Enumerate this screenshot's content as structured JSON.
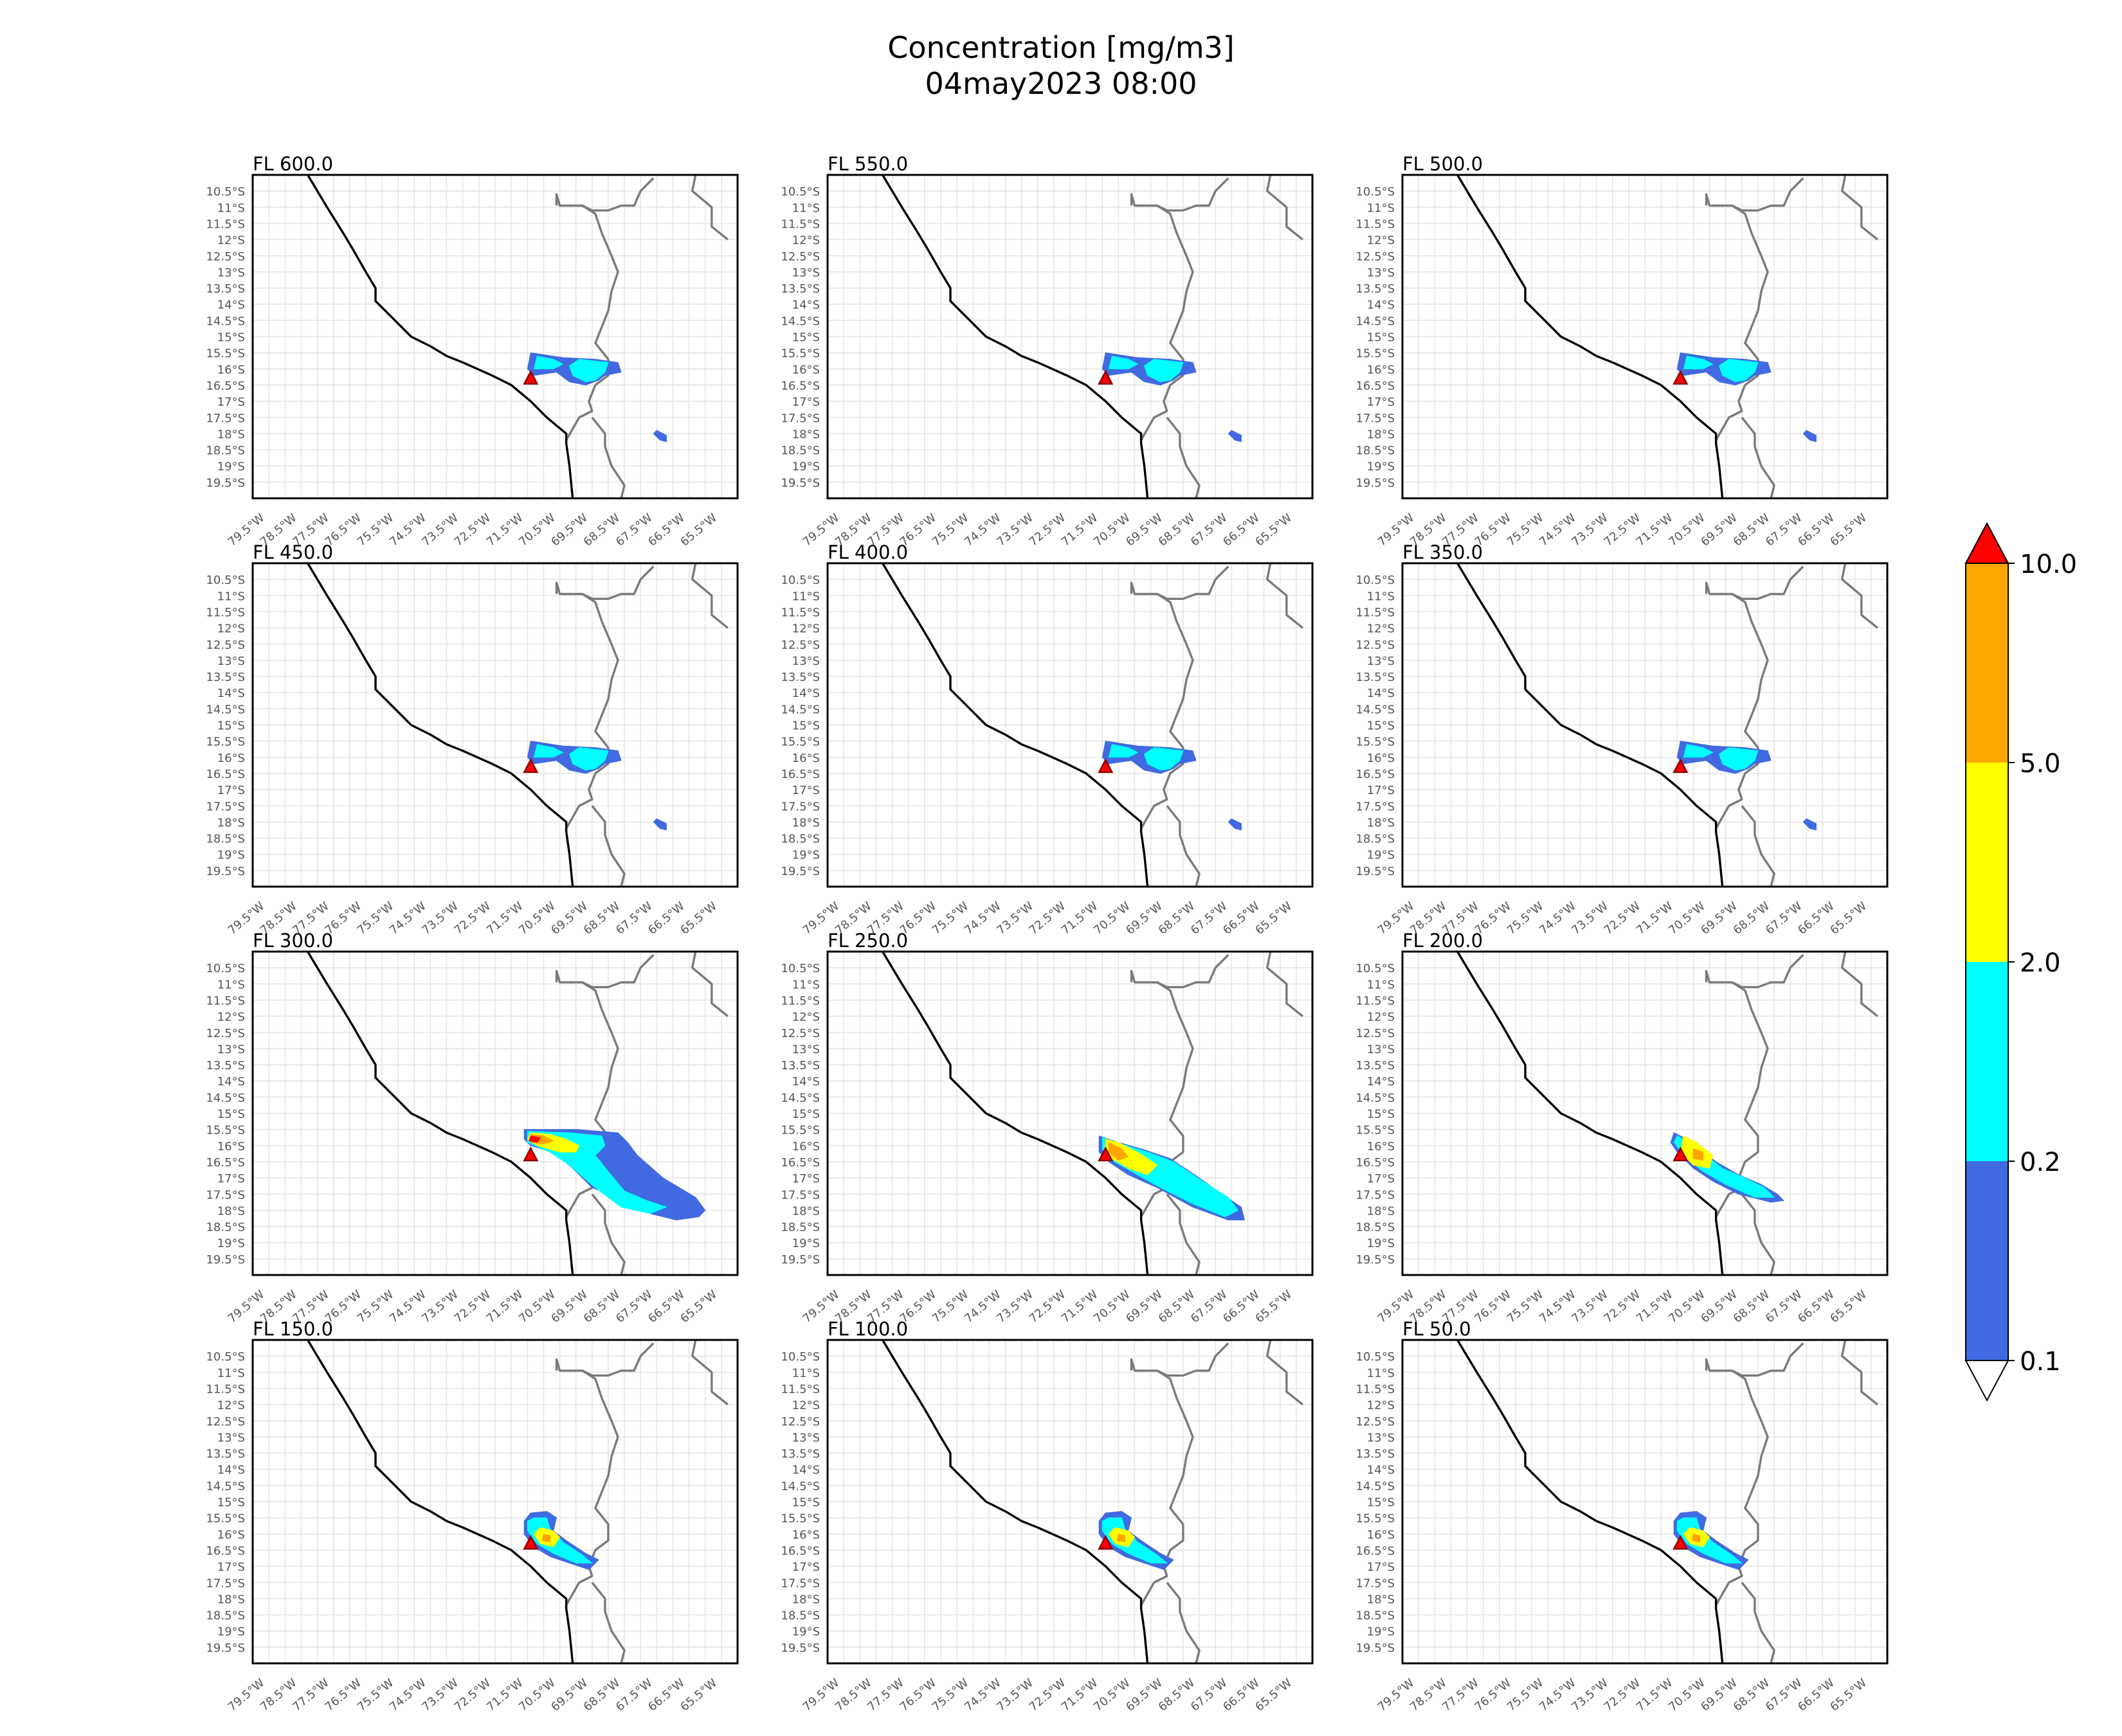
{
  "title_line1": "Concentration [mg/m3]",
  "title_line2": "04may2023 08:00",
  "lat_ticks": [
    "10.5°S",
    "11°S",
    "11.5°S",
    "12°S",
    "12.5°S",
    "13°S",
    "13.5°S",
    "14°S",
    "14.5°S",
    "15°S",
    "15.5°S",
    "16°S",
    "16.5°S",
    "17°S",
    "17.5°S",
    "18°S",
    "18.5°S",
    "19°S",
    "19.5°S"
  ],
  "lon_ticks": [
    "79.5°W",
    "78.5°W",
    "77.5°W",
    "76.5°W",
    "75.5°W",
    "74.5°W",
    "73.5°W",
    "72.5°W",
    "71.5°W",
    "70.5°W",
    "69.5°W",
    "68.5°W",
    "67.5°W",
    "66.5°W",
    "65.5°W"
  ],
  "colorbar": {
    "levels": [
      "0.1",
      "0.2",
      "2.0",
      "5.0",
      "10.0"
    ],
    "colors": [
      "#4169e1",
      "#00ffff",
      "#ffff00",
      "#ffa500"
    ],
    "over_color": "#ff0000",
    "under_color": "#ffffff"
  },
  "source": {
    "lon": -71.4,
    "lat": -16.3,
    "color": "#ff0000",
    "edge": "#8b0000"
  },
  "panels": [
    {
      "label": "FL 600.0",
      "pattern": "A"
    },
    {
      "label": "FL 550.0",
      "pattern": "A"
    },
    {
      "label": "FL 500.0",
      "pattern": "A"
    },
    {
      "label": "FL 450.0",
      "pattern": "A"
    },
    {
      "label": "FL 400.0",
      "pattern": "B"
    },
    {
      "label": "FL 350.0",
      "pattern": "A"
    },
    {
      "label": "FL 300.0",
      "pattern": "C"
    },
    {
      "label": "FL 250.0",
      "pattern": "D"
    },
    {
      "label": "FL 200.0",
      "pattern": "E"
    },
    {
      "label": "FL 150.0",
      "pattern": "F"
    },
    {
      "label": "FL 100.0",
      "pattern": "F"
    },
    {
      "label": "FL 50.0",
      "pattern": "F"
    }
  ]
}
